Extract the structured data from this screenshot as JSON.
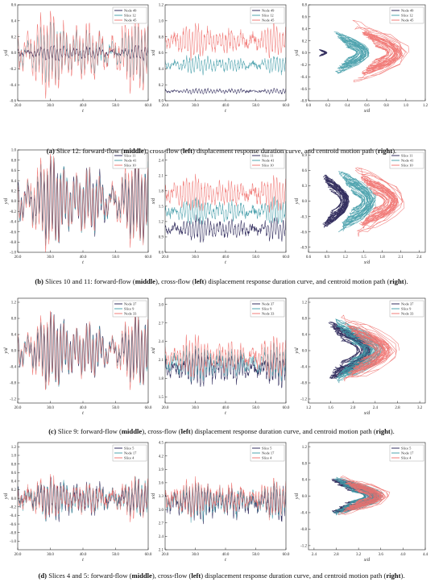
{
  "colors": {
    "dark": "#1f1a4f",
    "teal": "#3e9aa6",
    "red": "#f06f6b"
  },
  "chart_data": [
    {
      "type": "line",
      "panel": "a-left",
      "xlabel": "t",
      "ylabel": "y/d",
      "xlim": [
        20,
        60
      ],
      "ylim": [
        -0.6,
        0.6
      ],
      "xticks": [
        20,
        30,
        40,
        50,
        60
      ],
      "yticks": [
        -0.6,
        -0.4,
        -0.2,
        0.0,
        0.2,
        0.4,
        0.6
      ],
      "series": [
        {
          "name": "Node 49",
          "color": "#1f1a4f",
          "center": 0.0,
          "amp": 0.08,
          "noise": 0.02
        },
        {
          "name": "Slice  12",
          "color": "#3e9aa6",
          "center": 0.0,
          "amp": 0.35,
          "noise": 0.05
        },
        {
          "name": "Node 45",
          "color": "#f06f6b",
          "center": 0.0,
          "amp": 0.45,
          "noise": 0.06
        }
      ]
    },
    {
      "type": "line",
      "panel": "a-middle",
      "xlabel": "t",
      "ylabel": "x/d",
      "xlim": [
        20,
        60
      ],
      "ylim": [
        0.0,
        1.2
      ],
      "xticks": [
        20,
        30,
        40,
        50,
        60
      ],
      "yticks": [
        0.0,
        0.2,
        0.4,
        0.6,
        0.8,
        1.0,
        1.2
      ],
      "series": [
        {
          "name": "Node 49",
          "color": "#1f1a4f",
          "center": 0.12,
          "amp": 0.03,
          "noise": 0.01
        },
        {
          "name": "Slice  12",
          "color": "#3e9aa6",
          "center": 0.45,
          "amp": 0.1,
          "noise": 0.03
        },
        {
          "name": "Node 45",
          "color": "#f06f6b",
          "center": 0.75,
          "amp": 0.18,
          "noise": 0.05
        }
      ]
    },
    {
      "type": "scatter",
      "panel": "a-right",
      "xlabel": "x/d",
      "ylabel": "y/d",
      "xlim": [
        0.0,
        1.2
      ],
      "ylim": [
        -0.8,
        0.8
      ],
      "xticks": [
        0.0,
        0.2,
        0.4,
        0.6,
        0.8,
        1.0,
        1.2
      ],
      "yticks": [
        -0.8,
        -0.6,
        -0.4,
        -0.2,
        0.0,
        0.2,
        0.4,
        0.6,
        0.8
      ],
      "series": [
        {
          "name": "Node 49",
          "color": "#1f1a4f",
          "cx": 0.15,
          "rx": 0.04,
          "ry": 0.06
        },
        {
          "name": "Slice  12",
          "color": "#3e9aa6",
          "cx": 0.45,
          "rx": 0.18,
          "ry": 0.35
        },
        {
          "name": "Node 45",
          "color": "#f06f6b",
          "cx": 0.75,
          "rx": 0.3,
          "ry": 0.55
        }
      ]
    },
    {
      "type": "line",
      "panel": "b-left",
      "xlabel": "t",
      "ylabel": "y/d",
      "xlim": [
        20,
        60
      ],
      "ylim": [
        -1.0,
        1.0
      ],
      "xticks": [
        20,
        30,
        40,
        50,
        60
      ],
      "yticks": [
        -1.0,
        -0.8,
        -0.6,
        -0.4,
        -0.2,
        0.0,
        0.2,
        0.4,
        0.6,
        0.8,
        1.0
      ],
      "series": [
        {
          "name": "Slice 11",
          "color": "#1f1a4f",
          "center": 0.0,
          "amp": 0.75,
          "noise": 0.06
        },
        {
          "name": "Node 41",
          "color": "#3e9aa6",
          "center": 0.0,
          "amp": 0.78,
          "noise": 0.06
        },
        {
          "name": "Slice 10",
          "color": "#f06f6b",
          "center": 0.0,
          "amp": 0.8,
          "noise": 0.06
        }
      ]
    },
    {
      "type": "line",
      "panel": "b-middle",
      "xlabel": "t",
      "ylabel": "x/d",
      "xlim": [
        20,
        60
      ],
      "ylim": [
        0.6,
        2.6
      ],
      "xticks": [
        20,
        30,
        40,
        50,
        60
      ],
      "yticks": [
        0.6,
        0.9,
        1.2,
        1.5,
        1.8,
        2.1,
        2.4
      ],
      "series": [
        {
          "name": "Slice 11",
          "color": "#1f1a4f",
          "center": 1.05,
          "amp": 0.2,
          "noise": 0.06
        },
        {
          "name": "Node 41",
          "color": "#3e9aa6",
          "center": 1.4,
          "amp": 0.22,
          "noise": 0.07
        },
        {
          "name": "Slice 10",
          "color": "#f06f6b",
          "center": 1.75,
          "amp": 0.3,
          "noise": 0.08
        }
      ]
    },
    {
      "type": "scatter",
      "panel": "b-right",
      "xlabel": "x/d",
      "ylabel": "y/d",
      "xlim": [
        0.6,
        2.5
      ],
      "ylim": [
        -1.0,
        1.0
      ],
      "xticks": [
        0.6,
        0.9,
        1.2,
        1.5,
        1.8,
        2.1,
        2.4
      ],
      "yticks": [
        -0.9,
        -0.6,
        -0.3,
        0.0,
        0.3,
        0.6,
        0.9
      ],
      "series": [
        {
          "name": "Slice 11",
          "color": "#1f1a4f",
          "cx": 1.05,
          "rx": 0.22,
          "ry": 0.55
        },
        {
          "name": "Node 41",
          "color": "#3e9aa6",
          "cx": 1.4,
          "rx": 0.3,
          "ry": 0.6
        },
        {
          "name": "Slice 10",
          "color": "#f06f6b",
          "cx": 1.75,
          "rx": 0.45,
          "ry": 0.75
        }
      ]
    },
    {
      "type": "line",
      "panel": "c-left",
      "xlabel": "t",
      "ylabel": "y/d",
      "xlim": [
        20,
        60
      ],
      "ylim": [
        -1.3,
        1.3
      ],
      "xticks": [
        20,
        30,
        40,
        50,
        60
      ],
      "yticks": [
        -1.2,
        -0.8,
        -0.4,
        0.0,
        0.4,
        0.8,
        1.2
      ],
      "series": [
        {
          "name": "Node 37",
          "color": "#1f1a4f",
          "center": 0.0,
          "amp": 0.8,
          "noise": 0.06
        },
        {
          "name": "Slice  9",
          "color": "#3e9aa6",
          "center": 0.0,
          "amp": 0.82,
          "noise": 0.06
        },
        {
          "name": "Node 33",
          "color": "#f06f6b",
          "center": 0.0,
          "amp": 0.85,
          "noise": 0.06
        }
      ]
    },
    {
      "type": "line",
      "panel": "c-middle",
      "xlabel": "t",
      "ylabel": "x/d",
      "xlim": [
        20,
        60
      ],
      "ylim": [
        1.4,
        3.1
      ],
      "xticks": [
        20,
        30,
        40,
        50,
        60
      ],
      "yticks": [
        1.5,
        1.8,
        2.1,
        2.4,
        2.7,
        3.0
      ],
      "series": [
        {
          "name": "Node 37",
          "color": "#1f1a4f",
          "center": 1.95,
          "amp": 0.25,
          "noise": 0.07
        },
        {
          "name": "Slice  9",
          "color": "#3e9aa6",
          "center": 2.05,
          "amp": 0.25,
          "noise": 0.07
        },
        {
          "name": "Node 33",
          "color": "#f06f6b",
          "center": 2.15,
          "amp": 0.28,
          "noise": 0.07
        }
      ]
    },
    {
      "type": "scatter",
      "panel": "c-right",
      "xlabel": "x/d",
      "ylabel": "y/d",
      "xlim": [
        1.2,
        3.3
      ],
      "ylim": [
        -1.3,
        1.3
      ],
      "xticks": [
        1.2,
        1.6,
        2.0,
        2.4,
        2.8,
        3.2
      ],
      "yticks": [
        -1.2,
        -0.8,
        -0.4,
        0.0,
        0.4,
        0.8,
        1.2
      ],
      "series": [
        {
          "name": "Node 37",
          "color": "#1f1a4f",
          "cx": 1.95,
          "rx": 0.4,
          "ry": 0.75
        },
        {
          "name": "Slice  9",
          "color": "#3e9aa6",
          "cx": 2.1,
          "rx": 0.45,
          "ry": 0.8
        },
        {
          "name": "Node 33",
          "color": "#f06f6b",
          "cx": 2.3,
          "rx": 0.55,
          "ry": 0.9
        }
      ]
    },
    {
      "type": "line",
      "panel": "d-left",
      "xlabel": "t",
      "ylabel": "y/d",
      "xlim": [
        20,
        60
      ],
      "ylim": [
        -1.2,
        1.3
      ],
      "xticks": [
        20,
        30,
        40,
        50,
        60
      ],
      "yticks": [
        -1.0,
        -0.8,
        -0.6,
        -0.4,
        -0.2,
        0.0,
        0.2,
        0.4,
        0.6,
        0.8,
        1.0,
        1.2
      ],
      "series": [
        {
          "name": "Slice  5",
          "color": "#1f1a4f",
          "center": 0.0,
          "amp": 0.4,
          "noise": 0.12
        },
        {
          "name": "Node 17",
          "color": "#3e9aa6",
          "center": 0.0,
          "amp": 0.4,
          "noise": 0.12
        },
        {
          "name": "Slice  4",
          "color": "#f06f6b",
          "center": 0.0,
          "amp": 0.42,
          "noise": 0.12
        }
      ]
    },
    {
      "type": "line",
      "panel": "d-middle",
      "xlabel": "t",
      "ylabel": "x/d",
      "xlim": [
        20,
        60
      ],
      "ylim": [
        2.1,
        4.5
      ],
      "xticks": [
        20,
        30,
        40,
        50,
        60
      ],
      "yticks": [
        2.1,
        2.4,
        2.7,
        3.0,
        3.3,
        3.6,
        3.9,
        4.2,
        4.5
      ],
      "series": [
        {
          "name": "Slice  5",
          "color": "#1f1a4f",
          "center": 3.15,
          "amp": 0.35,
          "noise": 0.12
        },
        {
          "name": "Node 17",
          "color": "#3e9aa6",
          "center": 3.2,
          "amp": 0.35,
          "noise": 0.12
        },
        {
          "name": "Slice  4",
          "color": "#f06f6b",
          "center": 3.25,
          "amp": 0.35,
          "noise": 0.12
        }
      ]
    },
    {
      "type": "scatter",
      "panel": "d-right",
      "xlabel": "x/d",
      "ylabel": "y/d",
      "xlim": [
        2.3,
        4.4
      ],
      "ylim": [
        -1.3,
        1.3
      ],
      "xticks": [
        2.4,
        2.8,
        3.2,
        3.6,
        4.0,
        4.4
      ],
      "yticks": [
        -1.2,
        -0.8,
        -0.4,
        0.0,
        0.4,
        0.8,
        1.2
      ],
      "series": [
        {
          "name": "Slice  5",
          "color": "#1f1a4f",
          "cx": 3.15,
          "rx": 0.45,
          "ry": 0.45
        },
        {
          "name": "Node 17",
          "color": "#3e9aa6",
          "cx": 3.2,
          "rx": 0.45,
          "ry": 0.45
        },
        {
          "name": "Slice  4",
          "color": "#f06f6b",
          "cx": 3.3,
          "rx": 0.5,
          "ry": 0.5
        }
      ]
    }
  ],
  "captions": [
    {
      "tag": "(a)",
      "t1": "Slice 12: forward-flow (",
      "m": "middle",
      "t2": "), cross-flow (",
      "l": "left",
      "t3": ") displacement response duration curve, and centroid motion path (",
      "r": "right",
      "t4": ")."
    },
    {
      "tag": "(b)",
      "t1": "Slices 10 and 11: forward-flow (",
      "m": "middle",
      "t2": "), cross-flow (",
      "l": "left",
      "t3": ") displacement response duration curve, and centroid motion path (",
      "r": "right",
      "t4": ")."
    },
    {
      "tag": "(c)",
      "t1": "Slice 9: forward-flow (",
      "m": "middle",
      "t2": "), cross-flow (",
      "l": "left",
      "t3": ") displacement response duration curve, and centroid motion path (",
      "r": "right",
      "t4": ")."
    },
    {
      "tag": "(d)",
      "t1": "Slices 4 and 5: forward-flow (",
      "m": "middle",
      "t2": "), cross-flow (",
      "l": "left",
      "t3": ") displacement response duration curve, and centroid motion path (",
      "r": "right",
      "t4": ")."
    }
  ]
}
